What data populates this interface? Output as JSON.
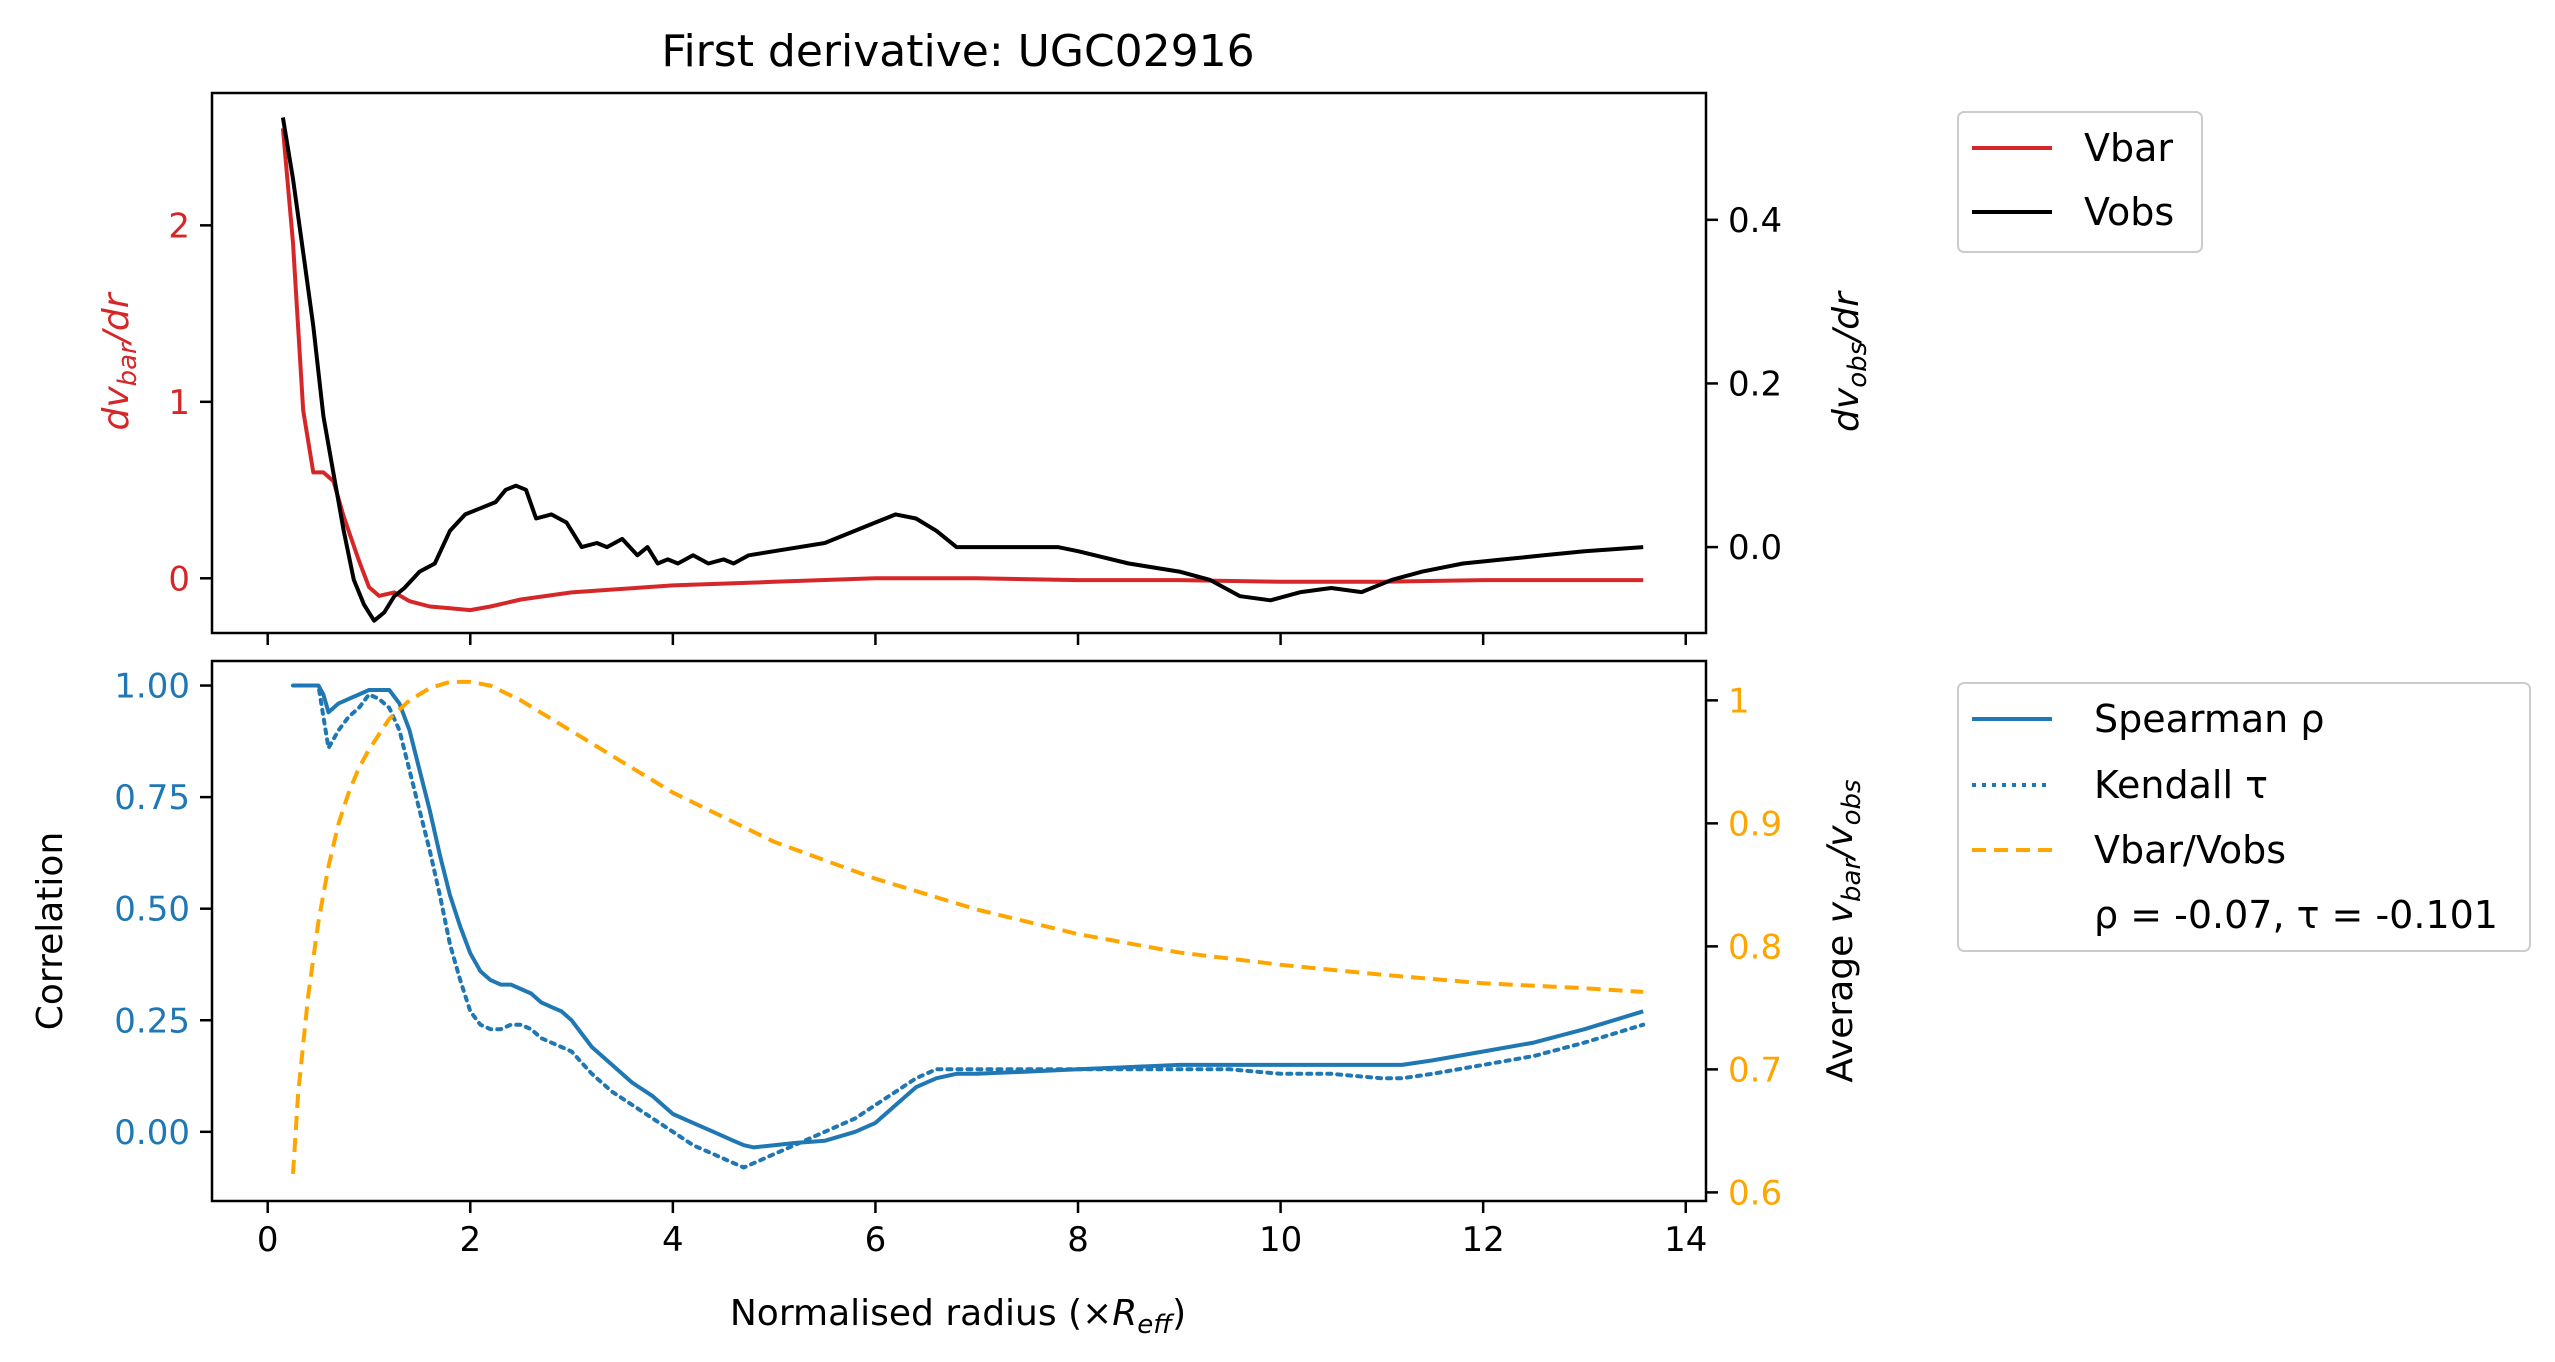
{
  "chart_data": [
    {
      "type": "line",
      "title": "First derivative: UGC02916",
      "xlim": [
        -0.55,
        14.2
      ],
      "ylim_left": [
        -0.31,
        2.75
      ],
      "ylim_right": [
        -0.105,
        0.555
      ],
      "x_ticks": [
        0,
        2,
        4,
        6,
        8,
        10,
        12,
        14
      ],
      "y_left_ticks": [
        0,
        1,
        2
      ],
      "y_right_ticks": [
        0.0,
        0.2,
        0.4
      ],
      "y_right_tick_labels": [
        "0.0",
        "0.2",
        "0.4"
      ],
      "ylabel_left": "dv_bar/dr",
      "ylabel_right": "dv_obs/dr",
      "legend_position": "outside-right-top",
      "series": [
        {
          "name": "Vbar",
          "axis": "left",
          "color": "#d62728",
          "style": "solid",
          "x": [
            0.15,
            0.25,
            0.35,
            0.45,
            0.55,
            0.65,
            0.75,
            0.9,
            1.0,
            1.1,
            1.25,
            1.4,
            1.6,
            1.8,
            2.0,
            2.2,
            2.5,
            3.0,
            3.5,
            4.0,
            5.0,
            6.0,
            7.0,
            8.0,
            9.0,
            10.0,
            11.0,
            12.0,
            13.58
          ],
          "values": [
            2.55,
            1.9,
            0.95,
            0.6,
            0.6,
            0.55,
            0.35,
            0.1,
            -0.05,
            -0.1,
            -0.08,
            -0.13,
            -0.16,
            -0.17,
            -0.18,
            -0.16,
            -0.12,
            -0.08,
            -0.06,
            -0.04,
            -0.02,
            0.0,
            0.0,
            -0.01,
            -0.01,
            -0.02,
            -0.02,
            -0.01,
            -0.01
          ]
        },
        {
          "name": "Vobs",
          "axis": "right",
          "color": "#000000",
          "style": "solid",
          "x": [
            0.15,
            0.25,
            0.35,
            0.45,
            0.55,
            0.65,
            0.75,
            0.85,
            0.95,
            1.05,
            1.15,
            1.25,
            1.35,
            1.5,
            1.65,
            1.8,
            1.95,
            2.05,
            2.15,
            2.25,
            2.35,
            2.45,
            2.55,
            2.65,
            2.8,
            2.95,
            3.1,
            3.25,
            3.35,
            3.5,
            3.65,
            3.75,
            3.85,
            3.95,
            4.05,
            4.2,
            4.35,
            4.5,
            4.6,
            4.75,
            5.0,
            5.5,
            6.0,
            6.2,
            6.4,
            6.6,
            6.8,
            7.0,
            7.5,
            7.8,
            8.0,
            8.5,
            9.0,
            9.3,
            9.6,
            9.9,
            10.2,
            10.5,
            10.8,
            11.1,
            11.4,
            11.8,
            12.2,
            12.6,
            13.0,
            13.58
          ],
          "values": [
            0.525,
            0.45,
            0.36,
            0.27,
            0.16,
            0.09,
            0.02,
            -0.04,
            -0.07,
            -0.09,
            -0.08,
            -0.06,
            -0.05,
            -0.03,
            -0.02,
            0.02,
            0.04,
            0.045,
            0.05,
            0.055,
            0.07,
            0.075,
            0.07,
            0.035,
            0.04,
            0.03,
            0.0,
            0.005,
            0.0,
            0.01,
            -0.01,
            0.0,
            -0.02,
            -0.015,
            -0.02,
            -0.01,
            -0.02,
            -0.015,
            -0.02,
            -0.01,
            -0.005,
            0.005,
            0.03,
            0.04,
            0.035,
            0.02,
            0.0,
            0.0,
            0.0,
            0.0,
            -0.005,
            -0.02,
            -0.03,
            -0.04,
            -0.06,
            -0.065,
            -0.055,
            -0.05,
            -0.055,
            -0.04,
            -0.03,
            -0.02,
            -0.015,
            -0.01,
            -0.005,
            0.0
          ]
        }
      ]
    },
    {
      "type": "line",
      "xlabel": "Normalised radius (×R_eff)",
      "xlim": [
        -0.55,
        14.2
      ],
      "ylim_left": [
        -0.155,
        1.055
      ],
      "ylim_right": [
        0.593,
        1.032
      ],
      "x_ticks": [
        0,
        2,
        4,
        6,
        8,
        10,
        12,
        14
      ],
      "y_left_ticks": [
        0.0,
        0.25,
        0.5,
        0.75,
        1.0
      ],
      "y_left_tick_labels": [
        "0.00",
        "0.25",
        "0.50",
        "0.75",
        "1.00"
      ],
      "y_right_ticks": [
        0.6,
        0.7,
        0.8,
        0.9,
        1.0
      ],
      "ylabel_left": "Correlation",
      "ylabel_right": "Average v_bar/v_obs",
      "legend_position": "outside-right-top",
      "annotation": "ρ = -0.07, τ = -0.101",
      "series": [
        {
          "name": "Spearman ρ",
          "axis": "left",
          "color": "#1f77b4",
          "style": "solid",
          "x": [
            0.25,
            0.35,
            0.45,
            0.5,
            0.55,
            0.6,
            0.7,
            0.8,
            0.9,
            1.0,
            1.1,
            1.2,
            1.3,
            1.4,
            1.5,
            1.6,
            1.7,
            1.8,
            1.9,
            2.0,
            2.1,
            2.2,
            2.3,
            2.4,
            2.5,
            2.6,
            2.7,
            2.8,
            2.9,
            3.0,
            3.2,
            3.4,
            3.6,
            3.8,
            4.0,
            4.2,
            4.4,
            4.6,
            4.7,
            4.8,
            5.0,
            5.2,
            5.5,
            5.8,
            6.0,
            6.2,
            6.4,
            6.6,
            6.8,
            7.0,
            7.5,
            8.0,
            8.5,
            9.0,
            9.5,
            10.0,
            10.5,
            11.0,
            11.2,
            11.5,
            12.0,
            12.5,
            13.0,
            13.58
          ],
          "values": [
            1.0,
            1.0,
            1.0,
            1.0,
            0.98,
            0.94,
            0.96,
            0.97,
            0.98,
            0.99,
            0.99,
            0.99,
            0.96,
            0.9,
            0.81,
            0.72,
            0.62,
            0.53,
            0.46,
            0.4,
            0.36,
            0.34,
            0.33,
            0.33,
            0.32,
            0.31,
            0.29,
            0.28,
            0.27,
            0.25,
            0.19,
            0.15,
            0.11,
            0.08,
            0.04,
            0.02,
            0.0,
            -0.02,
            -0.03,
            -0.035,
            -0.03,
            -0.025,
            -0.02,
            0.0,
            0.02,
            0.06,
            0.1,
            0.12,
            0.13,
            0.13,
            0.135,
            0.14,
            0.145,
            0.15,
            0.15,
            0.15,
            0.15,
            0.15,
            0.15,
            0.16,
            0.18,
            0.2,
            0.23,
            0.27
          ]
        },
        {
          "name": "Kendall τ",
          "axis": "left",
          "color": "#1f77b4",
          "style": "dotted",
          "x": [
            0.25,
            0.35,
            0.45,
            0.5,
            0.55,
            0.6,
            0.7,
            0.8,
            0.9,
            1.0,
            1.1,
            1.2,
            1.3,
            1.4,
            1.5,
            1.6,
            1.7,
            1.8,
            1.9,
            2.0,
            2.1,
            2.2,
            2.3,
            2.4,
            2.5,
            2.6,
            2.7,
            2.8,
            2.9,
            3.0,
            3.2,
            3.4,
            3.6,
            3.8,
            4.0,
            4.2,
            4.4,
            4.6,
            4.7,
            4.8,
            5.0,
            5.2,
            5.5,
            5.8,
            6.0,
            6.2,
            6.4,
            6.6,
            6.8,
            7.0,
            7.5,
            8.0,
            8.5,
            9.0,
            9.5,
            10.0,
            10.5,
            11.0,
            11.2,
            11.5,
            12.0,
            12.5,
            13.0,
            13.58
          ],
          "values": [
            1.0,
            1.0,
            1.0,
            1.0,
            0.93,
            0.86,
            0.9,
            0.93,
            0.95,
            0.98,
            0.97,
            0.95,
            0.9,
            0.81,
            0.72,
            0.63,
            0.53,
            0.42,
            0.34,
            0.27,
            0.24,
            0.23,
            0.23,
            0.24,
            0.24,
            0.23,
            0.21,
            0.2,
            0.19,
            0.18,
            0.13,
            0.09,
            0.06,
            0.03,
            0.0,
            -0.03,
            -0.05,
            -0.07,
            -0.08,
            -0.07,
            -0.05,
            -0.03,
            0.0,
            0.03,
            0.06,
            0.09,
            0.12,
            0.14,
            0.14,
            0.14,
            0.14,
            0.14,
            0.14,
            0.14,
            0.14,
            0.13,
            0.13,
            0.12,
            0.12,
            0.13,
            0.15,
            0.17,
            0.2,
            0.24
          ]
        },
        {
          "name": "Vbar/Vobs",
          "axis": "right",
          "color": "#ffa500",
          "style": "dashed",
          "x": [
            0.25,
            0.3,
            0.4,
            0.5,
            0.6,
            0.7,
            0.8,
            0.9,
            1.0,
            1.2,
            1.4,
            1.6,
            1.8,
            2.0,
            2.2,
            2.5,
            3.0,
            3.5,
            4.0,
            4.5,
            5.0,
            6.0,
            7.0,
            8.0,
            9.0,
            10.0,
            11.0,
            12.0,
            13.0,
            13.58
          ],
          "values": [
            0.615,
            0.68,
            0.76,
            0.82,
            0.865,
            0.9,
            0.925,
            0.945,
            0.96,
            0.985,
            1.0,
            1.01,
            1.015,
            1.015,
            1.012,
            1.0,
            0.975,
            0.95,
            0.925,
            0.905,
            0.885,
            0.855,
            0.83,
            0.81,
            0.795,
            0.785,
            0.777,
            0.77,
            0.766,
            0.763
          ]
        }
      ]
    }
  ]
}
